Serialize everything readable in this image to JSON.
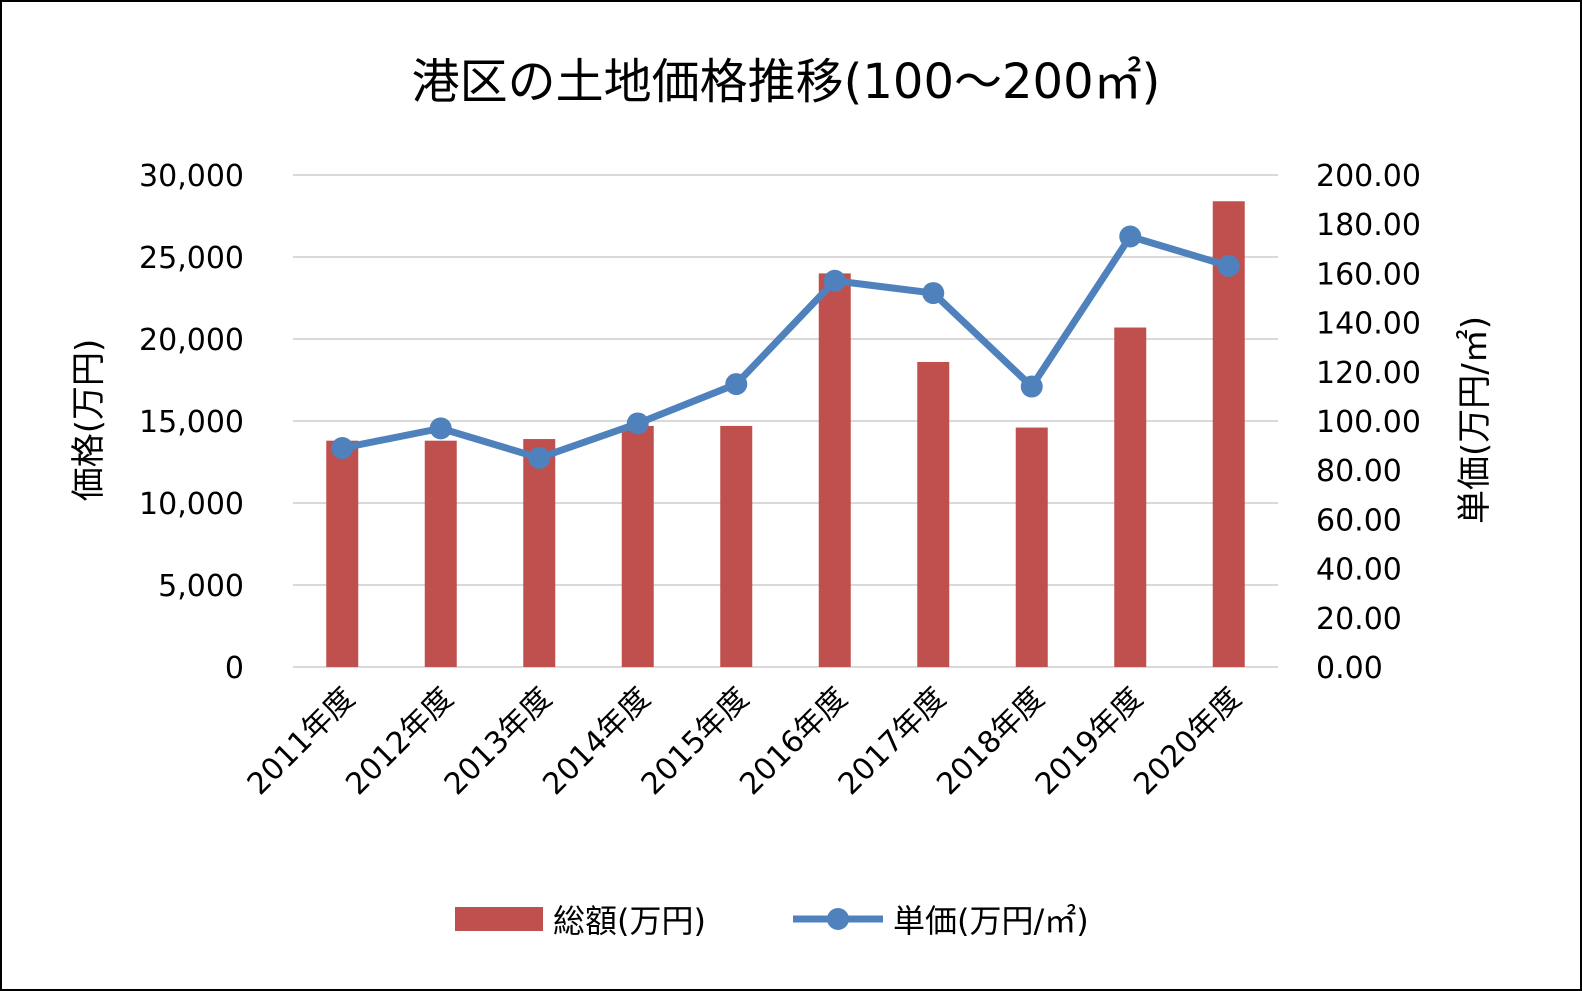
{
  "chart_data": {
    "type": "bar+line",
    "title": "港区の土地価格推移(100～200㎡)",
    "categories": [
      "2011年度",
      "2012年度",
      "2013年度",
      "2014年度",
      "2015年度",
      "2016年度",
      "2017年度",
      "2018年度",
      "2019年度",
      "2020年度"
    ],
    "y_left": {
      "label": "価格(万円)",
      "range": [
        0,
        30000
      ],
      "ticks": [
        "0",
        "5,000",
        "10,000",
        "15,000",
        "20,000",
        "25,000",
        "30,000"
      ],
      "tick_values": [
        0,
        5000,
        10000,
        15000,
        20000,
        25000,
        30000
      ]
    },
    "y_right": {
      "label": "単価(万円/㎡)",
      "range": [
        0,
        200
      ],
      "ticks": [
        "0.00",
        "20.00",
        "40.00",
        "60.00",
        "80.00",
        "100.00",
        "120.00",
        "140.00",
        "160.00",
        "180.00",
        "200.00"
      ],
      "tick_values": [
        0,
        20,
        40,
        60,
        80,
        100,
        120,
        140,
        160,
        180,
        200
      ]
    },
    "grid": "horizontal",
    "legend_position": "bottom",
    "series": [
      {
        "name": "総額(万円)",
        "type": "bar",
        "axis": "left",
        "color": "#C0504D",
        "values": [
          13800,
          13800,
          13900,
          14700,
          14700,
          24000,
          18600,
          14600,
          20700,
          28400
        ]
      },
      {
        "name": "単価(万円/㎡)",
        "type": "line",
        "axis": "right",
        "color": "#4F81BD",
        "marker": "circle",
        "values": [
          89,
          97,
          85,
          99,
          115,
          157,
          152,
          114,
          175,
          163
        ]
      }
    ]
  }
}
